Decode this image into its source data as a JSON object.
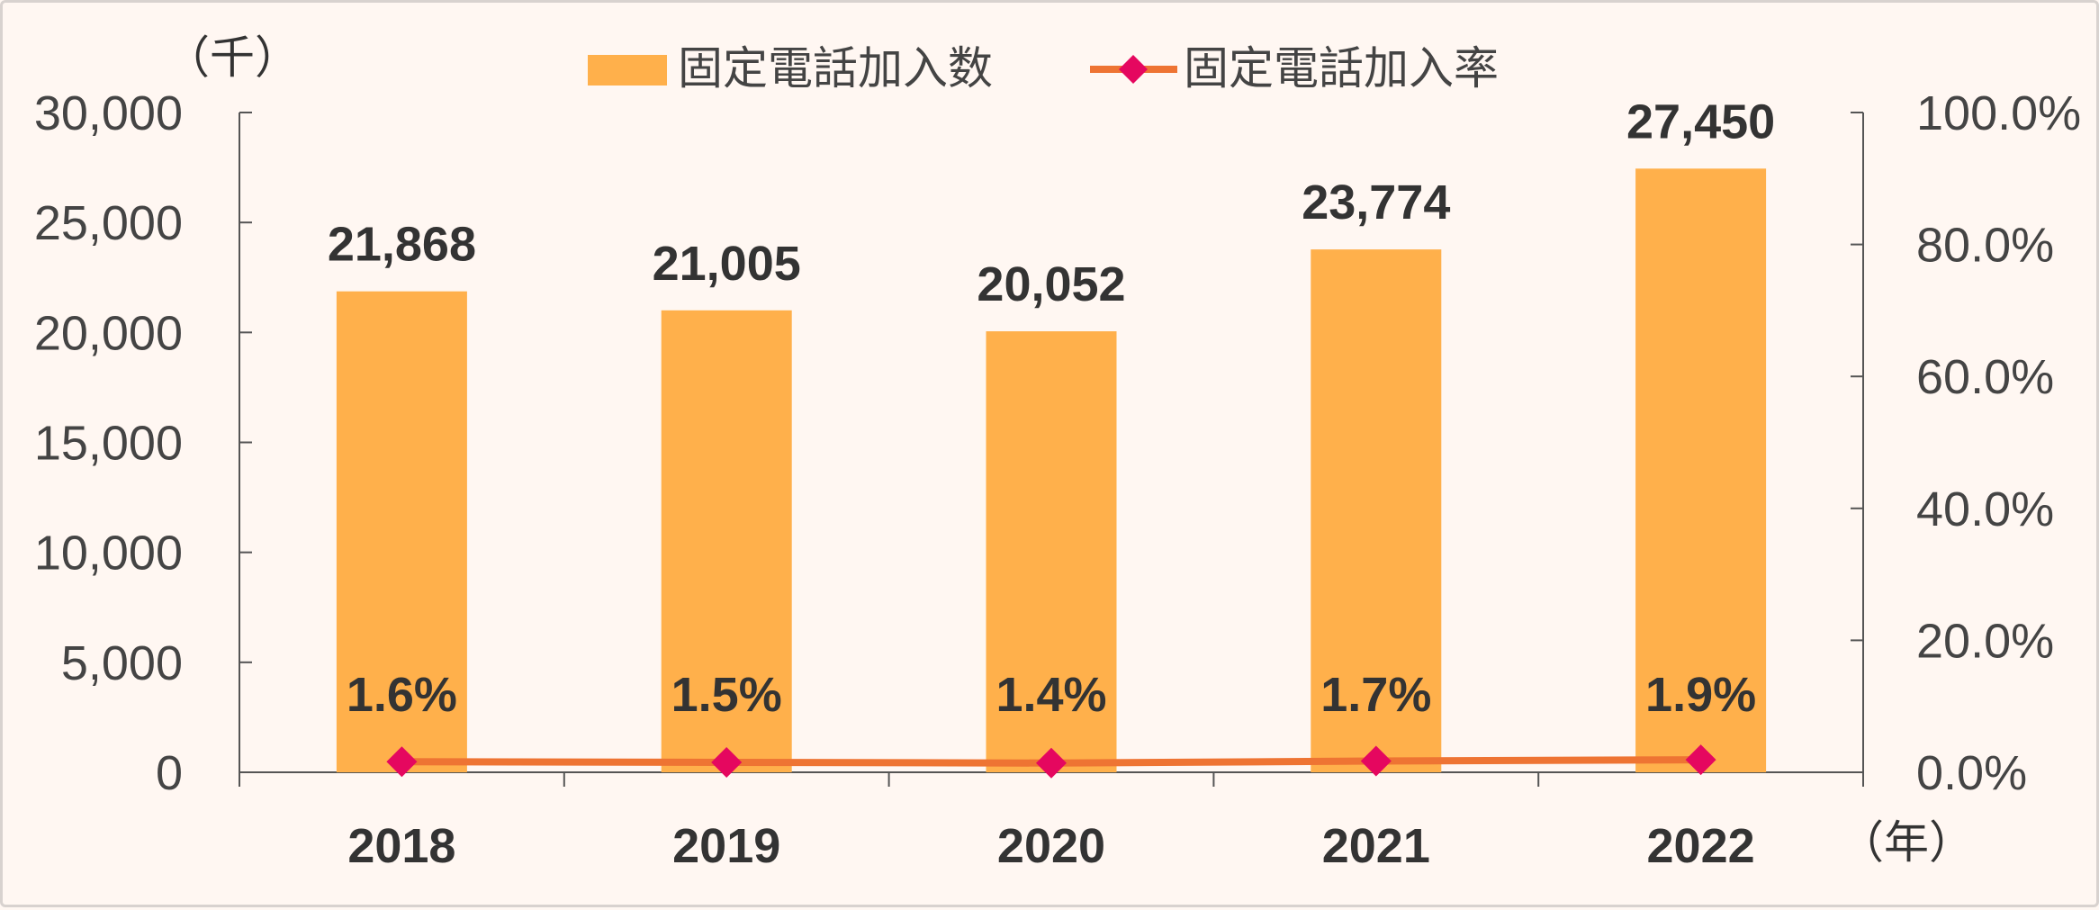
{
  "chart_data": {
    "type": "bar",
    "categories": [
      "2018",
      "2019",
      "2020",
      "2021",
      "2022"
    ],
    "series": [
      {
        "name": "固定電話加入数",
        "type": "bar",
        "axis": "left",
        "values": [
          21868,
          21005,
          20052,
          23774,
          27450
        ],
        "labels": [
          "21,868",
          "21,005",
          "20,052",
          "23,774",
          "27,450"
        ],
        "color": "#ffb04b"
      },
      {
        "name": "固定電話加入率",
        "type": "line",
        "axis": "right",
        "values": [
          1.6,
          1.5,
          1.4,
          1.7,
          1.9
        ],
        "labels": [
          "1.6%",
          "1.5%",
          "1.4%",
          "1.7%",
          "1.9%"
        ],
        "line_color": "#ee7433",
        "marker_color": "#e5075f",
        "marker": "diamond"
      }
    ],
    "y_left": {
      "unit": "（千）",
      "ylim": [
        0,
        30000
      ],
      "ticks": [
        0,
        5000,
        10000,
        15000,
        20000,
        25000,
        30000
      ],
      "tick_labels": [
        "0",
        "5,000",
        "10,000",
        "15,000",
        "20,000",
        "25,000",
        "30,000"
      ]
    },
    "y_right": {
      "ylim": [
        0,
        100
      ],
      "ticks": [
        0,
        20,
        40,
        60,
        80,
        100
      ],
      "tick_labels": [
        "0.0%",
        "20.0%",
        "40.0%",
        "60.0%",
        "80.0%",
        "100.0%"
      ]
    },
    "x_unit": "（年）",
    "legend_position": "top-center",
    "grid": false
  }
}
